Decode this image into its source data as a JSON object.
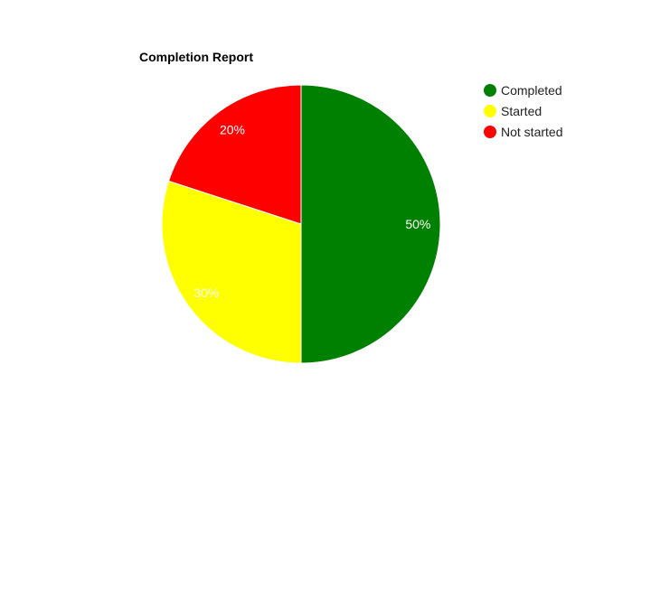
{
  "chart_data": {
    "type": "pie",
    "title": "Completion Report",
    "legend_position": "right",
    "categories": [
      "Completed",
      "Started",
      "Not started"
    ],
    "values": [
      50,
      30,
      20
    ],
    "value_labels": [
      "50%",
      "30%",
      "20%"
    ],
    "colors": [
      "#008000",
      "#ffff00",
      "#ff0000"
    ]
  }
}
